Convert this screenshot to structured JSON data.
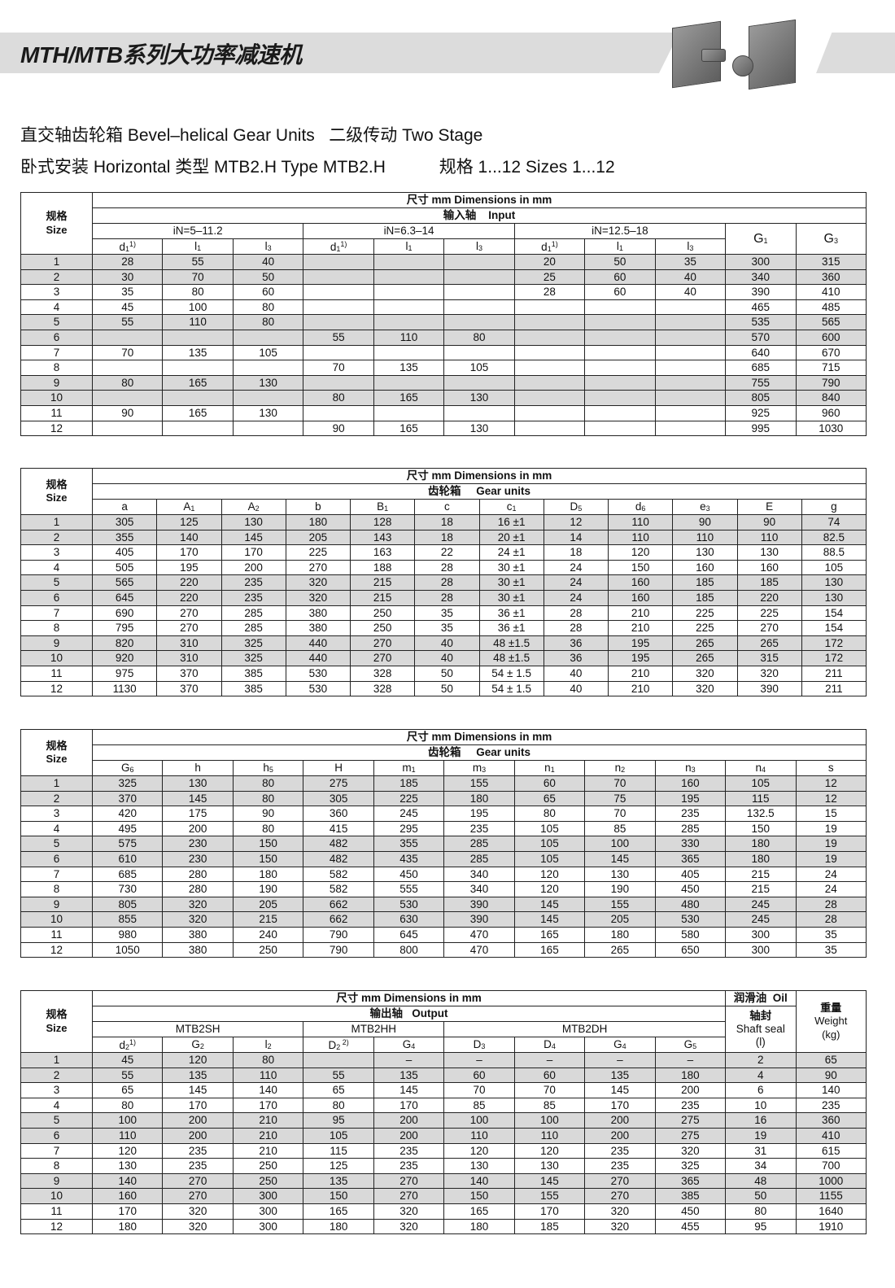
{
  "header": {
    "title": "MTH/MTB系列大功率减速机",
    "line1": "直交轴齿轮箱 Bevel–helical Gear Units   二级传动 Two Stage",
    "line2": "卧式安装 Horizontal 类型 MTB2.H Type MTB2.H",
    "line2_sizes": "规格 1...12 Sizes 1...12"
  },
  "common": {
    "size_cn": "规格",
    "size_en": "Size",
    "dims": "尺寸 mm Dimensions in mm"
  },
  "table1": {
    "group": "输入轴    Input",
    "ranges": [
      "iN=5–11.2",
      "iN=6.3–14",
      "iN=12.5–18"
    ],
    "cols": [
      {
        "b": "d",
        "s": "1",
        "p": "1)"
      },
      {
        "b": "l",
        "s": "1"
      },
      {
        "b": "l",
        "s": "3"
      },
      {
        "b": "d",
        "s": "1",
        "p": "1)"
      },
      {
        "b": "l",
        "s": "1"
      },
      {
        "b": "l",
        "s": "3"
      },
      {
        "b": "d",
        "s": "1",
        "p": "1)"
      },
      {
        "b": "l",
        "s": "1"
      },
      {
        "b": "l",
        "s": "3"
      }
    ],
    "g1": {
      "b": "G",
      "s": "1"
    },
    "g3": {
      "b": "G",
      "s": "3"
    },
    "rows": [
      [
        "1",
        "28",
        "55",
        "40",
        "",
        "",
        "",
        "20",
        "50",
        "35",
        "300",
        "315"
      ],
      [
        "2",
        "30",
        "70",
        "50",
        "",
        "",
        "",
        "25",
        "60",
        "40",
        "340",
        "360"
      ],
      [
        "3",
        "35",
        "80",
        "60",
        "",
        "",
        "",
        "28",
        "60",
        "40",
        "390",
        "410"
      ],
      [
        "4",
        "45",
        "100",
        "80",
        "",
        "",
        "",
        "",
        "",
        "",
        "465",
        "485"
      ],
      [
        "5",
        "55",
        "110",
        "80",
        "",
        "",
        "",
        "",
        "",
        "",
        "535",
        "565"
      ],
      [
        "6",
        "",
        "",
        "",
        "55",
        "110",
        "80",
        "",
        "",
        "",
        "570",
        "600"
      ],
      [
        "7",
        "70",
        "135",
        "105",
        "",
        "",
        "",
        "",
        "",
        "",
        "640",
        "670"
      ],
      [
        "8",
        "",
        "",
        "",
        "70",
        "135",
        "105",
        "",
        "",
        "",
        "685",
        "715"
      ],
      [
        "9",
        "80",
        "165",
        "130",
        "",
        "",
        "",
        "",
        "",
        "",
        "755",
        "790"
      ],
      [
        "10",
        "",
        "",
        "",
        "80",
        "165",
        "130",
        "",
        "",
        "",
        "805",
        "840"
      ],
      [
        "11",
        "90",
        "165",
        "130",
        "",
        "",
        "",
        "",
        "",
        "",
        "925",
        "960"
      ],
      [
        "12",
        "",
        "",
        "",
        "90",
        "165",
        "130",
        "",
        "",
        "",
        "995",
        "1030"
      ]
    ]
  },
  "table2": {
    "group": "齿轮箱     Gear units",
    "cols": [
      {
        "b": "a"
      },
      {
        "b": "A",
        "s": "1"
      },
      {
        "b": "A",
        "s": "2"
      },
      {
        "b": "b"
      },
      {
        "b": "B",
        "s": "1"
      },
      {
        "b": "c"
      },
      {
        "b": "c",
        "s": "1"
      },
      {
        "b": "D",
        "s": "5"
      },
      {
        "b": "d",
        "s": "6"
      },
      {
        "b": "e",
        "s": "3"
      },
      {
        "b": "E"
      },
      {
        "b": "g"
      }
    ],
    "rows": [
      [
        "1",
        "305",
        "125",
        "130",
        "180",
        "128",
        "18",
        "16 ±1",
        "12",
        "110",
        "90",
        "90",
        "74"
      ],
      [
        "2",
        "355",
        "140",
        "145",
        "205",
        "143",
        "18",
        "20 ±1",
        "14",
        "110",
        "110",
        "110",
        "82.5"
      ],
      [
        "3",
        "405",
        "170",
        "170",
        "225",
        "163",
        "22",
        "24 ±1",
        "18",
        "120",
        "130",
        "130",
        "88.5"
      ],
      [
        "4",
        "505",
        "195",
        "200",
        "270",
        "188",
        "28",
        "30 ±1",
        "24",
        "150",
        "160",
        "160",
        "105"
      ],
      [
        "5",
        "565",
        "220",
        "235",
        "320",
        "215",
        "28",
        "30 ±1",
        "24",
        "160",
        "185",
        "185",
        "130"
      ],
      [
        "6",
        "645",
        "220",
        "235",
        "320",
        "215",
        "28",
        "30 ±1",
        "24",
        "160",
        "185",
        "220",
        "130"
      ],
      [
        "7",
        "690",
        "270",
        "285",
        "380",
        "250",
        "35",
        "36 ±1",
        "28",
        "210",
        "225",
        "225",
        "154"
      ],
      [
        "8",
        "795",
        "270",
        "285",
        "380",
        "250",
        "35",
        "36 ±1",
        "28",
        "210",
        "225",
        "270",
        "154"
      ],
      [
        "9",
        "820",
        "310",
        "325",
        "440",
        "270",
        "40",
        "48 ±1.5",
        "36",
        "195",
        "265",
        "265",
        "172"
      ],
      [
        "10",
        "920",
        "310",
        "325",
        "440",
        "270",
        "40",
        "48 ±1.5",
        "36",
        "195",
        "265",
        "315",
        "172"
      ],
      [
        "11",
        "975",
        "370",
        "385",
        "530",
        "328",
        "50",
        "54 ± 1.5",
        "40",
        "210",
        "320",
        "320",
        "211"
      ],
      [
        "12",
        "1130",
        "370",
        "385",
        "530",
        "328",
        "50",
        "54 ± 1.5",
        "40",
        "210",
        "320",
        "390",
        "211"
      ]
    ]
  },
  "table3": {
    "group": "齿轮箱     Gear units",
    "cols": [
      {
        "b": "G",
        "s": "6"
      },
      {
        "b": "h"
      },
      {
        "b": "h",
        "s": "5"
      },
      {
        "b": "H"
      },
      {
        "b": "m",
        "s": "1"
      },
      {
        "b": "m",
        "s": "3"
      },
      {
        "b": "n",
        "s": "1"
      },
      {
        "b": "n",
        "s": "2"
      },
      {
        "b": "n",
        "s": "3"
      },
      {
        "b": "n",
        "s": "4"
      },
      {
        "b": "s"
      }
    ],
    "rows": [
      [
        "1",
        "325",
        "130",
        "80",
        "275",
        "185",
        "155",
        "60",
        "70",
        "160",
        "105",
        "12"
      ],
      [
        "2",
        "370",
        "145",
        "80",
        "305",
        "225",
        "180",
        "65",
        "75",
        "195",
        "115",
        "12"
      ],
      [
        "3",
        "420",
        "175",
        "90",
        "360",
        "245",
        "195",
        "80",
        "70",
        "235",
        "132.5",
        "15"
      ],
      [
        "4",
        "495",
        "200",
        "80",
        "415",
        "295",
        "235",
        "105",
        "85",
        "285",
        "150",
        "19"
      ],
      [
        "5",
        "575",
        "230",
        "150",
        "482",
        "355",
        "285",
        "105",
        "100",
        "330",
        "180",
        "19"
      ],
      [
        "6",
        "610",
        "230",
        "150",
        "482",
        "435",
        "285",
        "105",
        "145",
        "365",
        "180",
        "19"
      ],
      [
        "7",
        "685",
        "280",
        "180",
        "582",
        "450",
        "340",
        "120",
        "130",
        "405",
        "215",
        "24"
      ],
      [
        "8",
        "730",
        "280",
        "190",
        "582",
        "555",
        "340",
        "120",
        "190",
        "450",
        "215",
        "24"
      ],
      [
        "9",
        "805",
        "320",
        "205",
        "662",
        "530",
        "390",
        "145",
        "155",
        "480",
        "245",
        "28"
      ],
      [
        "10",
        "855",
        "320",
        "215",
        "662",
        "630",
        "390",
        "145",
        "205",
        "530",
        "245",
        "28"
      ],
      [
        "11",
        "980",
        "380",
        "240",
        "790",
        "645",
        "470",
        "165",
        "180",
        "580",
        "300",
        "35"
      ],
      [
        "12",
        "1050",
        "380",
        "250",
        "790",
        "800",
        "470",
        "165",
        "265",
        "650",
        "300",
        "35"
      ]
    ]
  },
  "table4": {
    "group": "输出轴   Output",
    "variants": [
      "MTB2SH",
      "MTB2HH",
      "MTB2DH"
    ],
    "oil": "润滑油  Oil",
    "seal_cn": "轴封",
    "seal_en": "Shaft seal",
    "seal_unit": "(l)",
    "weight_cn": "重量",
    "weight_en": "Weight",
    "weight_unit": "(kg)",
    "cols": [
      {
        "b": "d",
        "s": "2",
        "p": "1)"
      },
      {
        "b": "G",
        "s": "2"
      },
      {
        "b": "l",
        "s": "2"
      },
      {
        "b": "D",
        "s": "2",
        "p": " 2)"
      },
      {
        "b": "G",
        "s": "4"
      },
      {
        "b": "D",
        "s": "3"
      },
      {
        "b": "D",
        "s": "4"
      },
      {
        "b": "G",
        "s": "4"
      },
      {
        "b": "G",
        "s": "5"
      }
    ],
    "rows": [
      [
        "1",
        "45",
        "120",
        "80",
        "",
        "–",
        "–",
        "–",
        "–",
        "–",
        "2",
        "65"
      ],
      [
        "2",
        "55",
        "135",
        "110",
        "55",
        "135",
        "60",
        "60",
        "135",
        "180",
        "4",
        "90"
      ],
      [
        "3",
        "65",
        "145",
        "140",
        "65",
        "145",
        "70",
        "70",
        "145",
        "200",
        "6",
        "140"
      ],
      [
        "4",
        "80",
        "170",
        "170",
        "80",
        "170",
        "85",
        "85",
        "170",
        "235",
        "10",
        "235"
      ],
      [
        "5",
        "100",
        "200",
        "210",
        "95",
        "200",
        "100",
        "100",
        "200",
        "275",
        "16",
        "360"
      ],
      [
        "6",
        "110",
        "200",
        "210",
        "105",
        "200",
        "110",
        "110",
        "200",
        "275",
        "19",
        "410"
      ],
      [
        "7",
        "120",
        "235",
        "210",
        "115",
        "235",
        "120",
        "120",
        "235",
        "320",
        "31",
        "615"
      ],
      [
        "8",
        "130",
        "235",
        "250",
        "125",
        "235",
        "130",
        "130",
        "235",
        "325",
        "34",
        "700"
      ],
      [
        "9",
        "140",
        "270",
        "250",
        "135",
        "270",
        "140",
        "145",
        "270",
        "365",
        "48",
        "1000"
      ],
      [
        "10",
        "160",
        "270",
        "300",
        "150",
        "270",
        "150",
        "155",
        "270",
        "385",
        "50",
        "1155"
      ],
      [
        "11",
        "170",
        "320",
        "300",
        "165",
        "320",
        "165",
        "170",
        "320",
        "450",
        "80",
        "1640"
      ],
      [
        "12",
        "180",
        "320",
        "300",
        "180",
        "320",
        "180",
        "185",
        "320",
        "455",
        "95",
        "1910"
      ]
    ]
  }
}
